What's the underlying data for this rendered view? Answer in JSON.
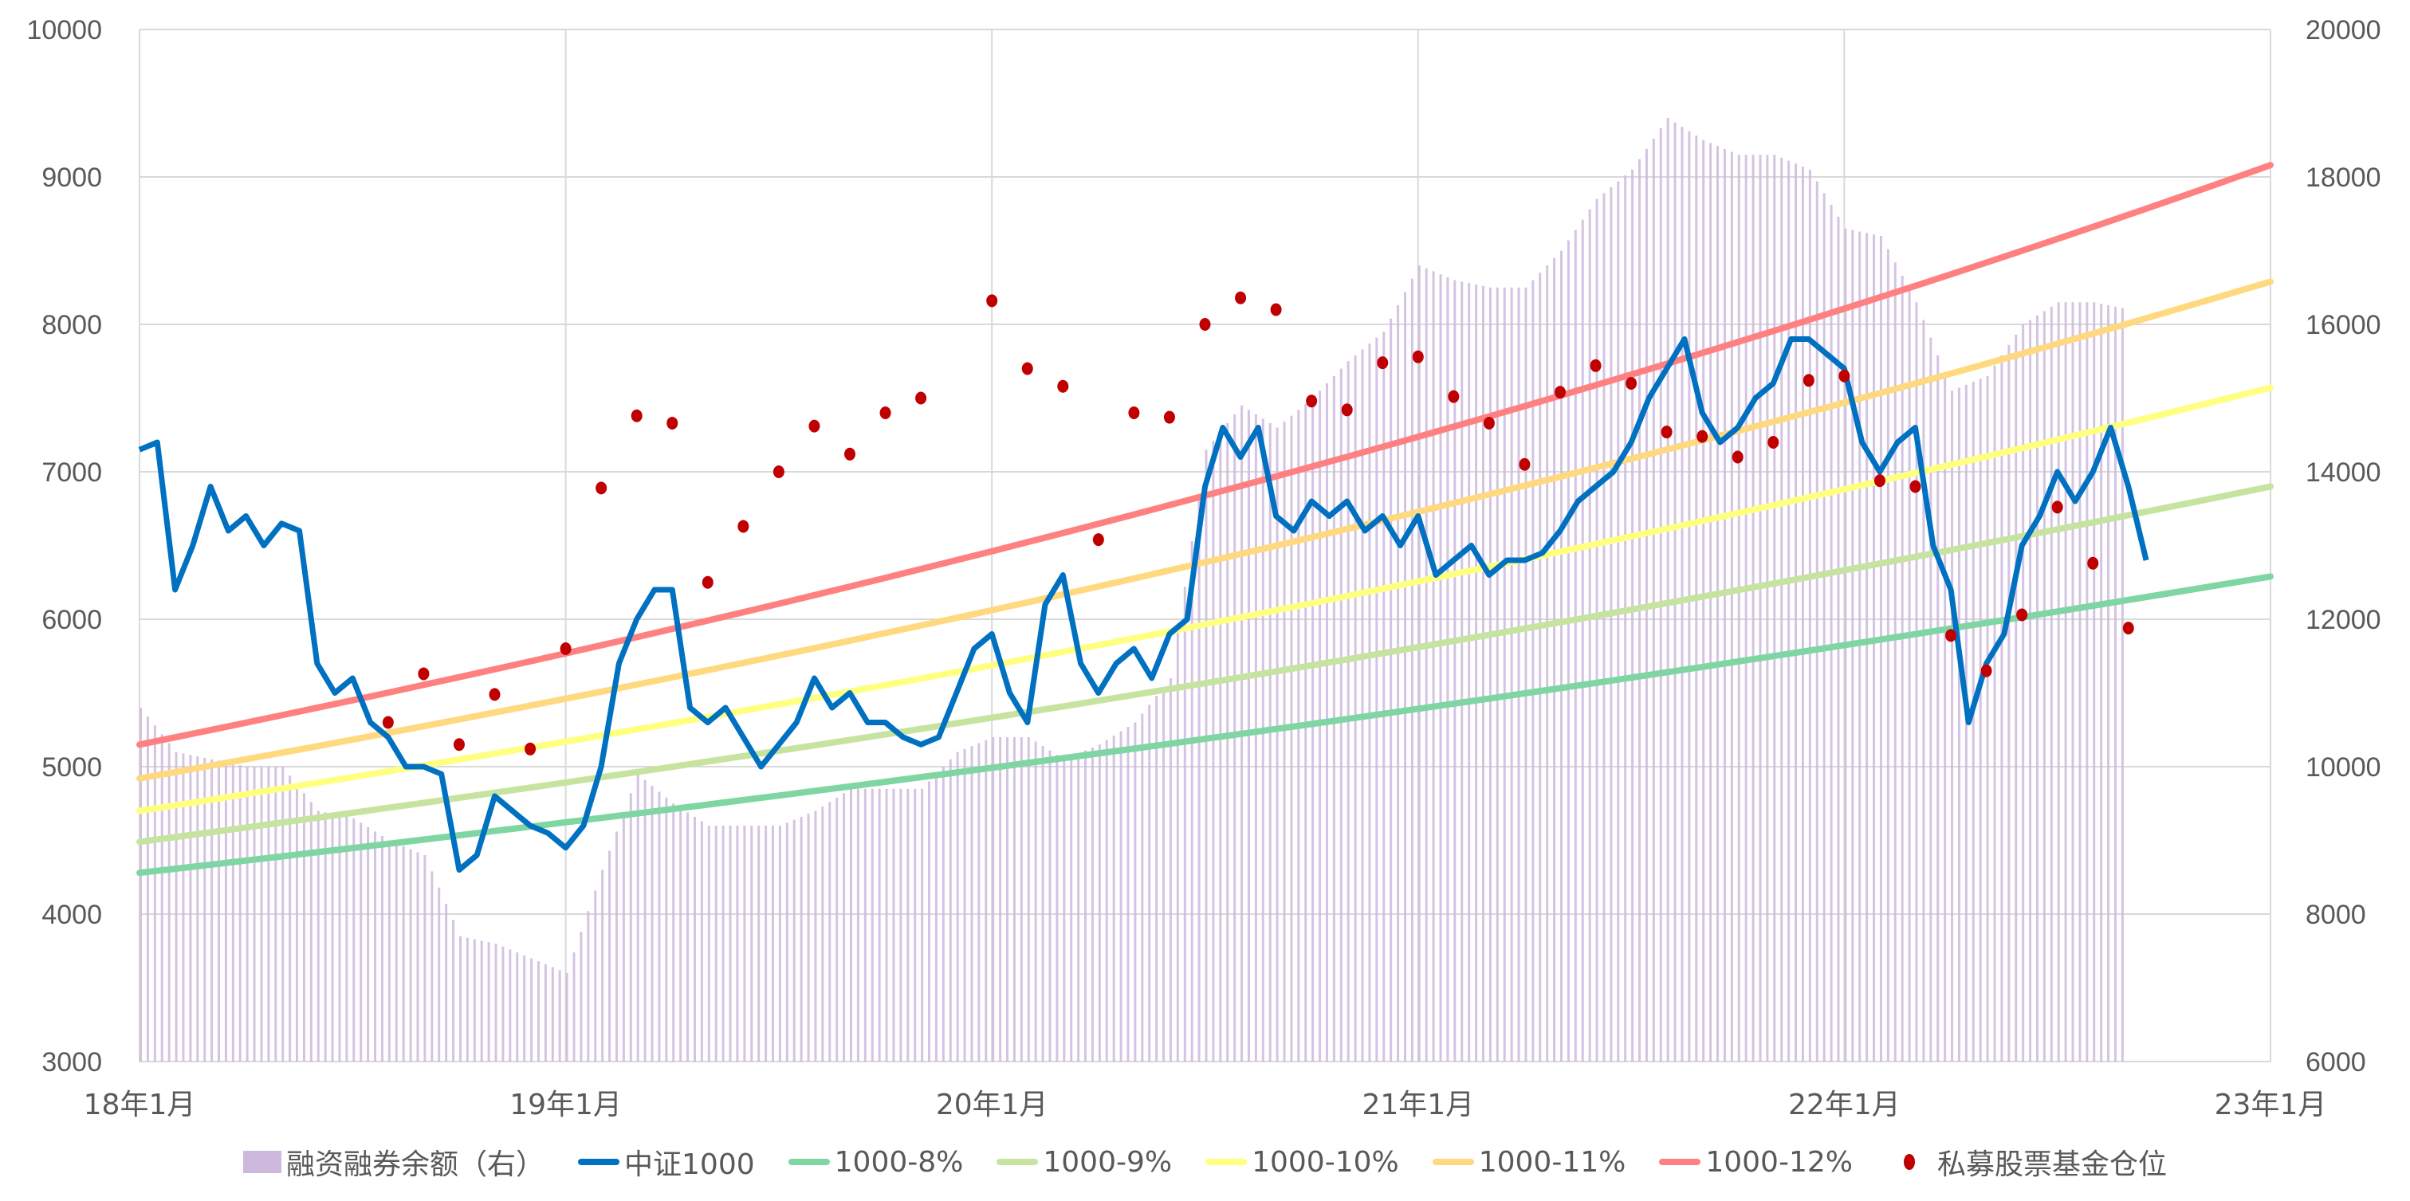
{
  "chart_data": {
    "type": "line",
    "title": "",
    "x_axis": {
      "tick_labels": [
        "18年1月",
        "19年1月",
        "20年1月",
        "21年1月",
        "22年1月",
        "23年1月"
      ],
      "range": [
        "2018-01",
        "2023-01"
      ]
    },
    "y_axis_left": {
      "range": [
        3000,
        10000
      ],
      "ticks": [
        "10000",
        "9000",
        "8000",
        "7000",
        "6000",
        "5000",
        "4000",
        "3000"
      ]
    },
    "y_axis_right": {
      "range": [
        6000,
        20000
      ],
      "ticks": [
        "20000",
        "18000",
        "16000",
        "14000",
        "12000",
        "10000",
        "8000",
        "6000"
      ]
    },
    "grid": true,
    "legend_position": "bottom",
    "series": [
      {
        "name": "融资融券余额（右）",
        "kind": "bar",
        "axis": "right",
        "color": "#cdb8de",
        "x_months": [
          0,
          1,
          2,
          3,
          4,
          5,
          6,
          7,
          8,
          9,
          10,
          11,
          12,
          13,
          14,
          15,
          16,
          17,
          18,
          19,
          20,
          21,
          22,
          23,
          24,
          25,
          26,
          27,
          28,
          29,
          30,
          31,
          32,
          33,
          34,
          35,
          36,
          37,
          38,
          39,
          40,
          41,
          42,
          43,
          44,
          45,
          46,
          47,
          48,
          49,
          50,
          51,
          52,
          53,
          54,
          55,
          56
        ],
        "values": [
          10800,
          10200,
          10100,
          10000,
          10000,
          9400,
          9300,
          9000,
          8800,
          7700,
          7600,
          7400,
          7200,
          8600,
          9900,
          9500,
          9200,
          9200,
          9200,
          9400,
          9700,
          9700,
          9700,
          10200,
          10400,
          10400,
          10100,
          10300,
          10600,
          11200,
          14300,
          14900,
          14600,
          15000,
          15500,
          15900,
          16800,
          16600,
          16500,
          16500,
          17000,
          17700,
          18100,
          18800,
          18500,
          18300,
          18300,
          18100,
          17300,
          17200,
          16300,
          15100,
          15300,
          16000,
          16300,
          16300,
          16200
        ]
      },
      {
        "name": "中证1000",
        "kind": "line",
        "axis": "left",
        "color": "#0070c0",
        "x_months": [
          0,
          0.5,
          1,
          1.5,
          2,
          2.5,
          3,
          3.5,
          4,
          4.5,
          5,
          5.5,
          6,
          6.5,
          7,
          7.5,
          8,
          8.5,
          9,
          9.5,
          10,
          10.5,
          11,
          11.5,
          12,
          12.5,
          13,
          13.5,
          14,
          14.5,
          15,
          15.5,
          16,
          16.5,
          17,
          17.5,
          18,
          18.5,
          19,
          19.5,
          20,
          20.5,
          21,
          21.5,
          22,
          22.5,
          23,
          23.5,
          24,
          24.5,
          25,
          25.5,
          26,
          26.5,
          27,
          27.5,
          28,
          28.5,
          29,
          29.5,
          30,
          30.5,
          31,
          31.5,
          32,
          32.5,
          33,
          33.5,
          34,
          34.5,
          35,
          35.5,
          36,
          36.5,
          37,
          37.5,
          38,
          38.5,
          39,
          39.5,
          40,
          40.5,
          41,
          41.5,
          42,
          42.5,
          43,
          43.5,
          44,
          44.5,
          45,
          45.5,
          46,
          46.5,
          47,
          47.5,
          48,
          48.5,
          49,
          49.5,
          50,
          50.5,
          51,
          51.5,
          52,
          52.5,
          53,
          53.5,
          54,
          54.5,
          55,
          55.5,
          56,
          56.5
        ],
        "values": [
          7150,
          7200,
          6200,
          6500,
          6900,
          6600,
          6700,
          6500,
          6650,
          6600,
          5700,
          5500,
          5600,
          5300,
          5200,
          5000,
          5000,
          4950,
          4300,
          4400,
          4800,
          4700,
          4600,
          4550,
          4450,
          4600,
          5000,
          5700,
          6000,
          6200,
          6200,
          5400,
          5300,
          5400,
          5200,
          5000,
          5150,
          5300,
          5600,
          5400,
          5500,
          5300,
          5300,
          5200,
          5150,
          5200,
          5500,
          5800,
          5900,
          5500,
          5300,
          6100,
          6300,
          5700,
          5500,
          5700,
          5800,
          5600,
          5900,
          6000,
          6900,
          7300,
          7100,
          7300,
          6700,
          6600,
          6800,
          6700,
          6800,
          6600,
          6700,
          6500,
          6700,
          6300,
          6400,
          6500,
          6300,
          6400,
          6400,
          6450,
          6600,
          6800,
          6900,
          7000,
          7200,
          7500,
          7700,
          7900,
          7400,
          7200,
          7300,
          7500,
          7600,
          7900,
          7900,
          7800,
          7700,
          7200,
          7000,
          7200,
          7300,
          6500,
          6200,
          5300,
          5700,
          5900,
          6500,
          6700,
          7000,
          6800,
          7000,
          7300,
          6900,
          6400
        ]
      },
      {
        "name": "1000-8%",
        "kind": "line",
        "axis": "left",
        "color": "#7fd6a2",
        "x_months": [
          0,
          60
        ],
        "values": [
          4280,
          6290
        ]
      },
      {
        "name": "1000-9%",
        "kind": "line",
        "axis": "left",
        "color": "#c6e4a0",
        "x_months": [
          0,
          60
        ],
        "values": [
          4490,
          6900
        ]
      },
      {
        "name": "1000-10%",
        "kind": "line",
        "axis": "left",
        "color": "#ffff80",
        "x_months": [
          0,
          60
        ],
        "values": [
          4700,
          7570
        ]
      },
      {
        "name": "1000-11%",
        "kind": "line",
        "axis": "left",
        "color": "#ffd97f",
        "x_months": [
          0,
          60
        ],
        "values": [
          4920,
          8290
        ]
      },
      {
        "name": "1000-12%",
        "kind": "line",
        "axis": "left",
        "color": "#ff8080",
        "x_months": [
          0,
          60
        ],
        "values": [
          5150,
          9080
        ]
      },
      {
        "name": "私募股票基金仓位",
        "kind": "scatter",
        "axis": "left",
        "color": "#c00000",
        "x_months": [
          7,
          8,
          9,
          10,
          11,
          12,
          13,
          14,
          15,
          16,
          17,
          18,
          19,
          20,
          21,
          22,
          24,
          25,
          26,
          27,
          28,
          29,
          30,
          31,
          32,
          33,
          34,
          35,
          36,
          37,
          38,
          39,
          40,
          41,
          42,
          43,
          44,
          45,
          46,
          47,
          48,
          49,
          50,
          51,
          52,
          53,
          54,
          55,
          56
        ],
        "values": [
          5300,
          5630,
          5150,
          5490,
          5120,
          5800,
          6890,
          7380,
          7330,
          6250,
          6630,
          7000,
          7310,
          7120,
          7400,
          7500,
          8160,
          7700,
          7580,
          6540,
          7400,
          7370,
          8000,
          8180,
          8100,
          7480,
          7420,
          7740,
          7780,
          7510,
          7330,
          7050,
          7540,
          7720,
          7600,
          7270,
          7240,
          7100,
          7200,
          7620,
          7650,
          6940,
          6900,
          5890,
          5650,
          6030,
          6760,
          6380,
          5940
        ]
      }
    ]
  },
  "legend": [
    {
      "label": "融资融券余额（右）",
      "marker": "box",
      "color": "#cdb8de"
    },
    {
      "label": "中证1000",
      "marker": "line",
      "color": "#0070c0"
    },
    {
      "label": "1000-8%",
      "marker": "line",
      "color": "#7fd6a2"
    },
    {
      "label": "1000-9%",
      "marker": "line",
      "color": "#c6e4a0"
    },
    {
      "label": "1000-10%",
      "marker": "line",
      "color": "#ffff80"
    },
    {
      "label": "1000-11%",
      "marker": "line",
      "color": "#ffd97f"
    },
    {
      "label": "1000-12%",
      "marker": "line",
      "color": "#ff8080"
    },
    {
      "label": "私募股票基金仓位",
      "marker": "dot",
      "color": "#c00000"
    }
  ]
}
